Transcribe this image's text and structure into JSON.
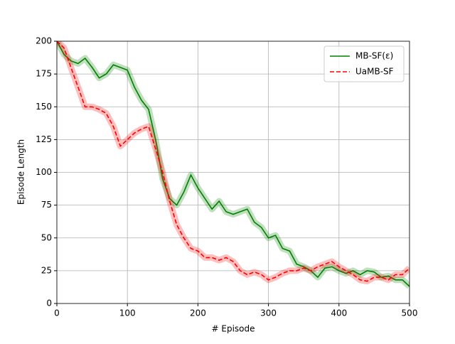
{
  "chart_data": {
    "type": "line",
    "xlabel": "# Episode",
    "ylabel": "Episode Length",
    "x": [
      0,
      10,
      20,
      30,
      40,
      50,
      60,
      70,
      80,
      90,
      100,
      110,
      120,
      130,
      140,
      150,
      160,
      170,
      180,
      190,
      200,
      210,
      220,
      230,
      240,
      250,
      260,
      270,
      280,
      290,
      300,
      310,
      320,
      330,
      340,
      350,
      360,
      370,
      380,
      390,
      400,
      410,
      420,
      430,
      440,
      450,
      460,
      470,
      480,
      490,
      500
    ],
    "series": [
      {
        "name": "MB-SF(ε)",
        "color": "#008000",
        "linestyle": "solid",
        "values": [
          200,
          190,
          185,
          183,
          187,
          180,
          172,
          175,
          182,
          180,
          178,
          165,
          155,
          148,
          125,
          95,
          80,
          75,
          85,
          98,
          88,
          80,
          72,
          78,
          70,
          68,
          70,
          72,
          62,
          58,
          50,
          52,
          42,
          40,
          30,
          28,
          25,
          20,
          27,
          28,
          25,
          23,
          25,
          22,
          25,
          24,
          20,
          21,
          18,
          18,
          13
        ]
      },
      {
        "name": "UaMB-SF",
        "color": "#ff0000",
        "linestyle": "dashed",
        "values": [
          200,
          195,
          180,
          165,
          150,
          150,
          148,
          145,
          135,
          120,
          125,
          130,
          133,
          135,
          118,
          100,
          78,
          60,
          50,
          42,
          40,
          35,
          35,
          33,
          35,
          32,
          25,
          22,
          24,
          22,
          18,
          20,
          23,
          25,
          25,
          27,
          25,
          28,
          30,
          32,
          28,
          25,
          22,
          18,
          17,
          20,
          20,
          18,
          22,
          22,
          27
        ]
      }
    ],
    "xlim": [
      0,
      500
    ],
    "xticks": [
      0,
      100,
      200,
      300,
      400,
      500
    ],
    "ylim": [
      0,
      200
    ],
    "yticks": [
      0,
      25,
      50,
      75,
      100,
      125,
      150,
      175,
      200
    ],
    "grid": true,
    "legend": "upper right"
  }
}
